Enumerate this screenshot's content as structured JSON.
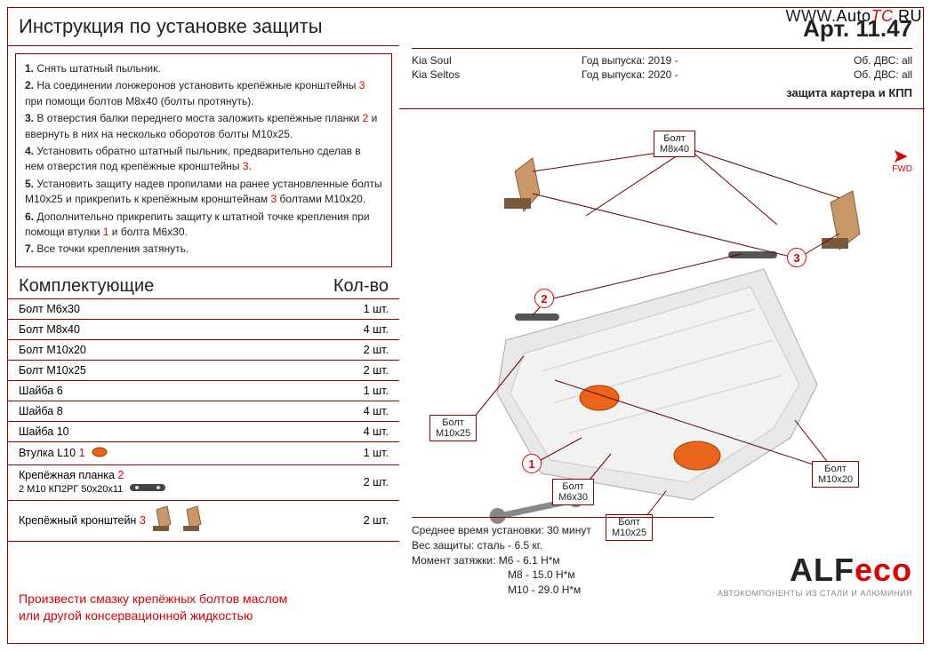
{
  "watermark": {
    "prefix": "WWW.",
    "a": "Auto",
    "tc": "TC",
    "ru": ".RU"
  },
  "title": "Инструкция по установке защиты",
  "steps": [
    {
      "n": "1.",
      "text": "Снять штатный пыльник."
    },
    {
      "n": "2.",
      "text": "На соединении лонжеронов установить крепёжные кронштейны ",
      "r": "3",
      "tail": " при помощи болтов М8х40 (болты протянуть)."
    },
    {
      "n": "3.",
      "text": "В отверстия балки переднего моста заложить крепёжные планки ",
      "r": "2",
      "tail": " и ввернуть в них на несколько оборотов болты М10х25."
    },
    {
      "n": "4.",
      "text": "Установить обратно штатный пыльник, предварительно сделав в нем отверстия под крепёжные кронштейны ",
      "r": "3",
      "tail": "."
    },
    {
      "n": "5.",
      "text": "Установить защиту надев пропилами на ранее установленные болты М10х25 и прикрепить к крепёжным кронштейнам ",
      "r": "3",
      "tail": " болтами М10х20."
    },
    {
      "n": "6.",
      "text": "Дополнительно прикрепить защиту к штатной точке крепления при помощи втулки ",
      "r": "1",
      "tail": " и болта М6х30."
    },
    {
      "n": "7.",
      "text": "Все точки крепления затянуть."
    }
  ],
  "components_header": {
    "left": "Комплектующие",
    "right": "Кол-во"
  },
  "components": [
    {
      "name": "Болт М6х30",
      "qty": "1 шт."
    },
    {
      "name": "Болт М8х40",
      "qty": "4 шт."
    },
    {
      "name": "Болт М10х20",
      "qty": "2 шт."
    },
    {
      "name": "Болт М10х25",
      "qty": "2 шт."
    },
    {
      "name": "Шайба 6",
      "qty": "1 шт."
    },
    {
      "name": "Шайба 8",
      "qty": "4 шт."
    },
    {
      "name": "Шайба 10",
      "qty": "4 шт."
    },
    {
      "name": "Втулка L10",
      "r": "1",
      "icon": "dot",
      "qty": "1 шт."
    },
    {
      "name": "Крепёжная планка",
      "r": "2",
      "sub": "2 М10 КП2РГ 50х20х11",
      "icon": "plank",
      "qty": "2 шт."
    },
    {
      "name": "Крепёжный кронштейн",
      "r": "3",
      "icon": "bracket",
      "qty": "2 шт."
    }
  ],
  "footer_note_l1": "Произвести смазку крепёжных болтов маслом",
  "footer_note_l2": "или другой консервационной жидкостью",
  "header": {
    "art": "Арт. 11.47",
    "vehicles": [
      {
        "model": "Kia Soul",
        "year": "Год выпуска: 2019 -",
        "eng": "Об. ДВС: all"
      },
      {
        "model": "Kia Seltos",
        "year": "Год выпуска: 2020 -",
        "eng": "Об. ДВС: all"
      }
    ],
    "desc": "защита картера и КПП"
  },
  "fwd": "FWD",
  "labels": {
    "m8x40": "Болт\nМ8х40",
    "m10x25a": "Болт\nМ10х25",
    "m6x30": "Болт\nМ6х30",
    "m10x25b": "Болт\nМ10х25",
    "m10x20": "Болт\nМ10х20"
  },
  "circles": {
    "1": "1",
    "2": "2",
    "3": "3"
  },
  "info": {
    "l1": "Среднее время установки: 30 минут",
    "l2": "Вес защиты: сталь - 6.5 кг.",
    "l3": "Момент затяжки: М6 - 6.1 Н*м",
    "l4": "М8 - 15.0 Н*м",
    "l5": "М10 - 29.0 Н*м"
  },
  "logo": {
    "alf": "ALF",
    "eco": "eco",
    "sub": "АВТОКОМПОНЕНТЫ ИЗ СТАЛИ И АЛЮМИНИЯ"
  },
  "colors": {
    "border": "#800",
    "red": "#d00",
    "text": "#222",
    "skid_fill": "#e8e8e8",
    "skid_stroke": "#aaa",
    "hatch_fill": "#e8651a",
    "bracket_fill": "#c89868",
    "leader": "#600"
  }
}
